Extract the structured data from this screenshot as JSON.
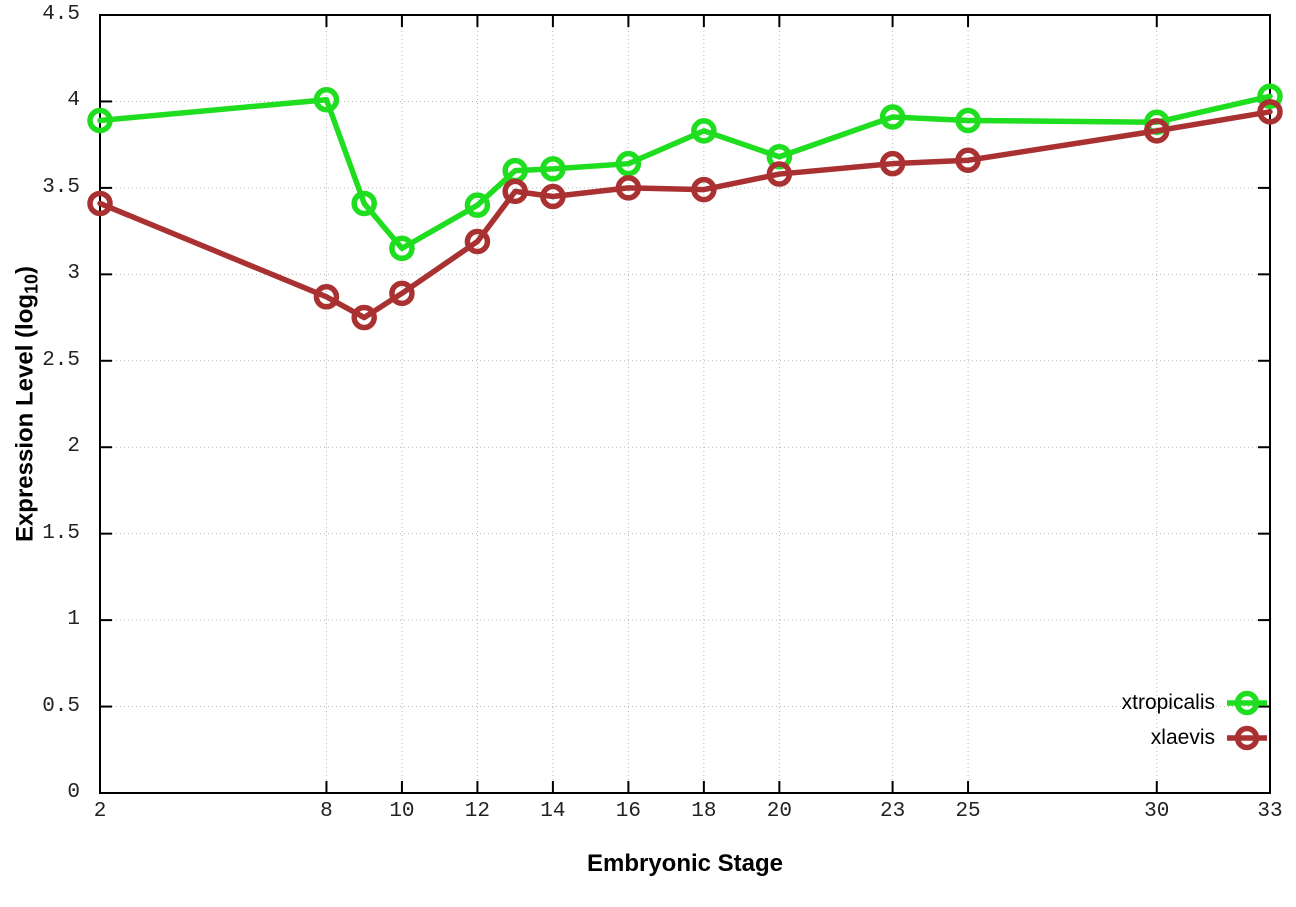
{
  "chart_data": {
    "type": "line",
    "title": "",
    "xlabel": "Embryonic Stage",
    "ylabel": "Expression Level (log10)",
    "ylabel_parts": {
      "main": "Expression Level (log",
      "sub": "10",
      "end": ")"
    },
    "x": [
      2,
      8,
      9,
      10,
      12,
      13,
      14,
      16,
      18,
      20,
      23,
      25,
      30,
      33
    ],
    "series": [
      {
        "name": "xtropicalis",
        "color": "#1fdd1f",
        "values": [
          3.89,
          4.01,
          3.41,
          3.15,
          3.4,
          3.6,
          3.61,
          3.64,
          3.83,
          3.68,
          3.91,
          3.89,
          3.88,
          4.03
        ]
      },
      {
        "name": "xlaevis",
        "color": "#aa3131",
        "values": [
          3.41,
          2.87,
          2.75,
          2.89,
          3.19,
          3.48,
          3.45,
          3.5,
          3.49,
          3.58,
          3.64,
          3.66,
          3.83,
          3.94
        ]
      }
    ],
    "x_ticks": [
      2,
      8,
      10,
      12,
      14,
      16,
      18,
      20,
      23,
      25,
      30,
      33
    ],
    "y_ticks": [
      0,
      0.5,
      1,
      1.5,
      2,
      2.5,
      3,
      3.5,
      4,
      4.5
    ],
    "xlim": [
      2,
      33
    ],
    "ylim": [
      0,
      4.5
    ],
    "grid": true,
    "legend_position": "bottom-right",
    "marker": "open-circle"
  }
}
